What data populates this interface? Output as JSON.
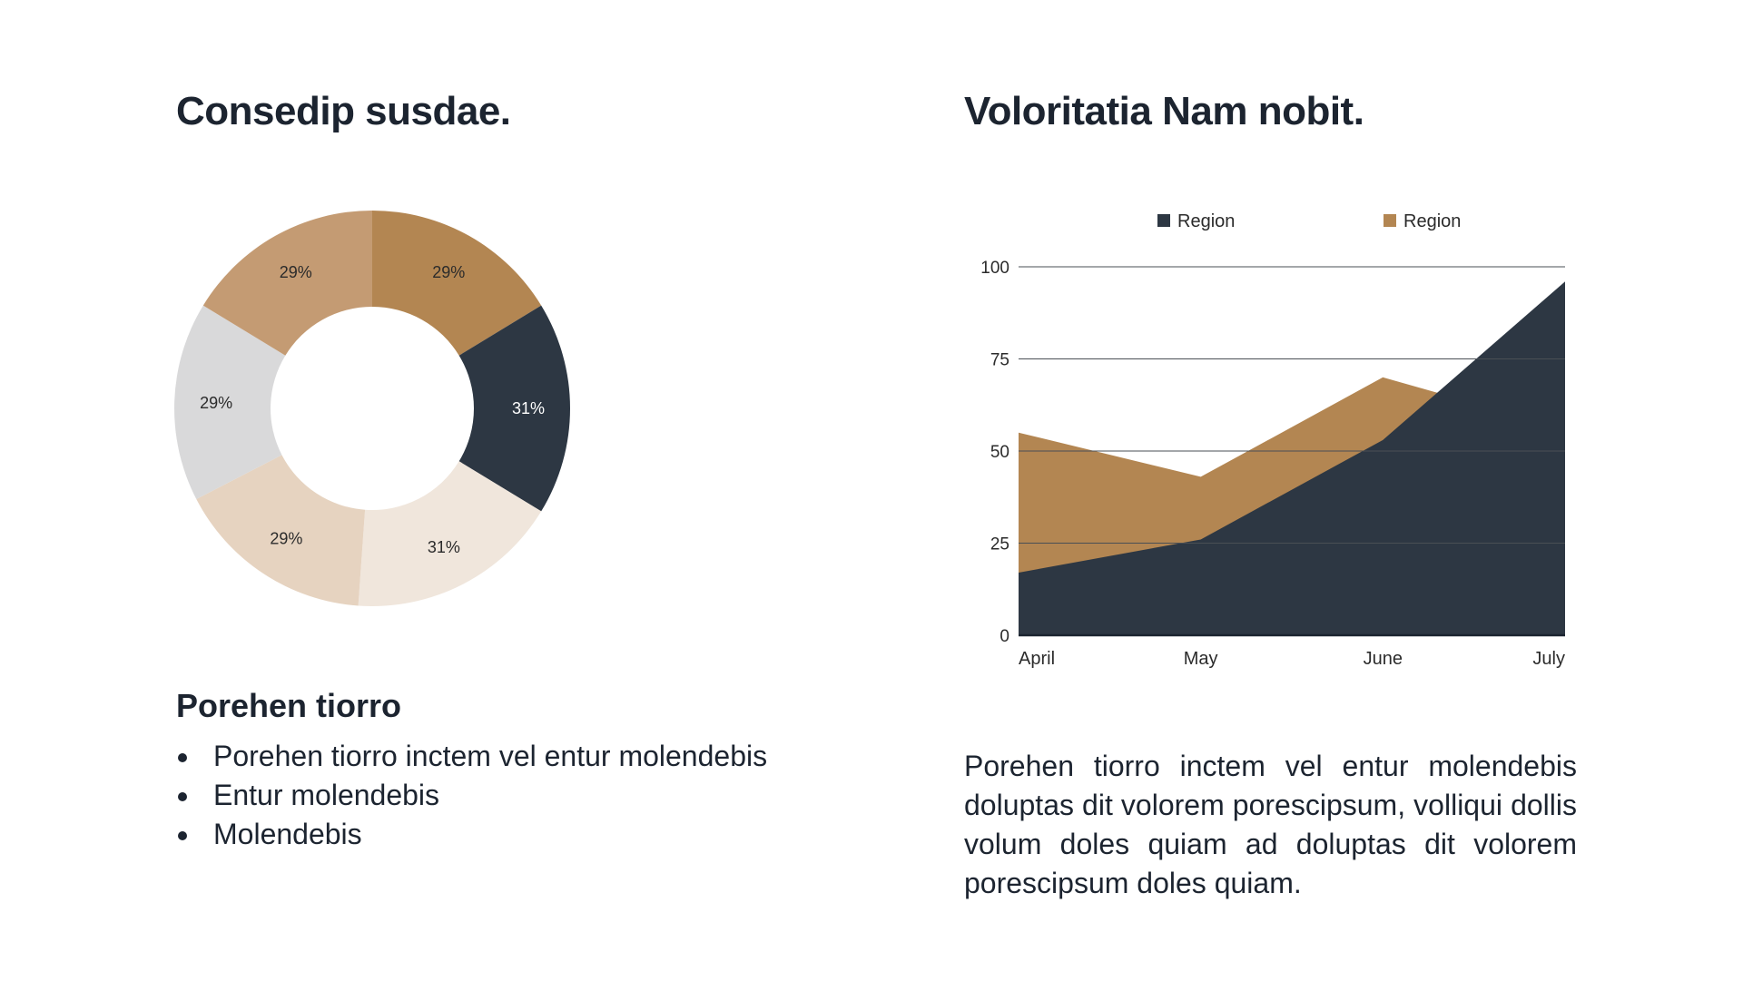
{
  "left": {
    "title": "Consedip susdae.",
    "subheading": "Porehen tiorro",
    "bullets": [
      "Porehen tiorro inctem vel entur molendebis",
      "Entur molendebis",
      "Molendebis"
    ]
  },
  "right": {
    "title": "Voloritatia Nam nobit.",
    "paragraph": "Porehen tiorro inctem vel entur molendebis doluptas dit volorem porescipsum, volliqui dollis volum doles quiam ad doluptas dit volorem porescipsum doles quiam."
  },
  "chart_data": [
    {
      "type": "pie",
      "variant": "donut",
      "title": "",
      "slices": [
        {
          "label": "29%",
          "value": 29,
          "color": "#b38652"
        },
        {
          "label": "31%",
          "value": 31,
          "color": "#2d3743"
        },
        {
          "label": "31%",
          "value": 31,
          "color": "#f0e6dc"
        },
        {
          "label": "29%",
          "value": 29,
          "color": "#e6d3c0"
        },
        {
          "label": "29%",
          "value": 29,
          "color": "#d9d9da"
        },
        {
          "label": "29%",
          "value": 29,
          "color": "#c49b73"
        }
      ]
    },
    {
      "type": "area",
      "title": "",
      "categories": [
        "April",
        "May",
        "June",
        "July"
      ],
      "series": [
        {
          "name": "Region",
          "color": "#2d3743",
          "values": [
            17,
            26,
            53,
            96
          ]
        },
        {
          "name": "Region",
          "color": "#b38652",
          "values": [
            55,
            43,
            70,
            56
          ]
        }
      ],
      "ylim": [
        0,
        100
      ],
      "yticks": [
        0,
        25,
        50,
        75,
        100
      ],
      "grid": true,
      "legend": "top",
      "xlabel": "",
      "ylabel": ""
    }
  ]
}
